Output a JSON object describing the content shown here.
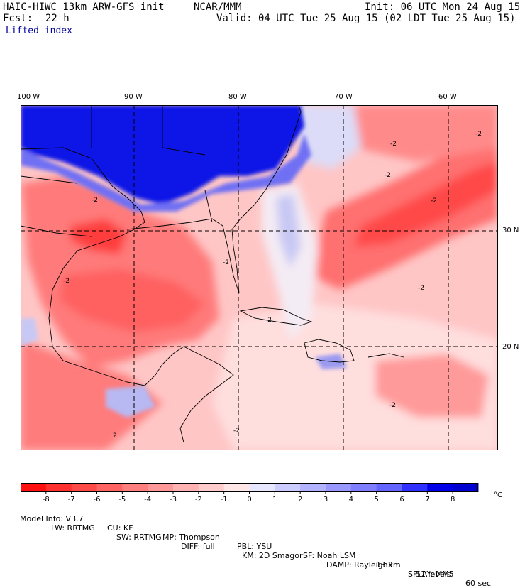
{
  "header": {
    "model_title": "HAIC-HIWC 13km ARW-GFS init",
    "org": "NCAR/MMM",
    "init": "Init: 06 UTC Mon 24 Aug 15",
    "fcst_label": "Fcst:",
    "fcst_value": "22 h",
    "valid": "Valid: 04 UTC Tue 25 Aug 15 (02 LDT Tue 25 Aug 15)",
    "field": "Lifted index"
  },
  "axes": {
    "lon_labels": [
      "100 W",
      "90 W",
      "80 W",
      "70 W",
      "60 W"
    ],
    "lat_labels": [
      "30 N",
      "20 N"
    ]
  },
  "map": {
    "contour_labels": [
      "-2",
      "-2",
      "-2",
      "-2",
      "-2",
      "-2",
      "-2",
      "-2",
      "-2",
      "-2",
      "2",
      "-2"
    ]
  },
  "colorbar": {
    "ticks": [
      "-8",
      "-7",
      "-6",
      "-5",
      "-4",
      "-3",
      "-2",
      "-1",
      "0",
      "1",
      "2",
      "3",
      "4",
      "5",
      "6",
      "7",
      "8"
    ],
    "unit": "°C",
    "colors": [
      "#ff1010",
      "#ff3030",
      "#ff4a4a",
      "#ff6464",
      "#ff7e7e",
      "#ff9898",
      "#ffb2b2",
      "#ffcccc",
      "#ffe6e6",
      "#e6e6ff",
      "#ccccff",
      "#b2b2ff",
      "#9898ff",
      "#7e7eff",
      "#6464ff",
      "#3030ff",
      "#0000e8",
      "#0000d0"
    ]
  },
  "model_info": {
    "line1": [
      "Model Info: V3.7",
      "CU: KF",
      "MP: Thompson",
      "PBL: YSU",
      "SF: Noah LSM",
      "13 km",
      "51 levels",
      "60 sec"
    ],
    "line2": [
      "LW: RRTMG",
      "SW: RRTMG",
      "DIFF: full",
      "KM: 2D Smagor",
      "DAMP: Rayleigh3",
      "SFLAY: MM5"
    ]
  }
}
